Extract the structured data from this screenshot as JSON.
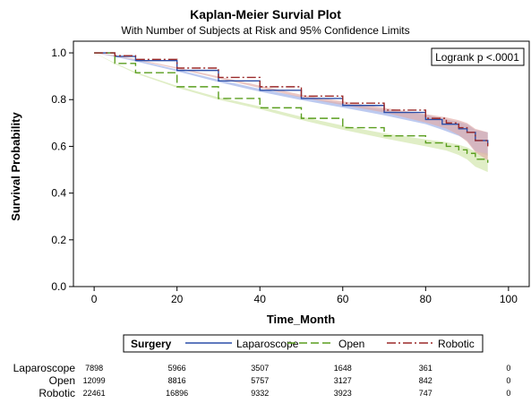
{
  "chart_data": {
    "type": "line",
    "title": "Kaplan-Meier Survial Plot",
    "subtitle": "With Number of Subjects at Risk and 95% Confidence Limits",
    "xlabel": "Time_Month",
    "ylabel": "Survival Probability",
    "xlim": [
      -5,
      105
    ],
    "ylim": [
      0,
      1.05
    ],
    "xticks": [
      0,
      20,
      40,
      60,
      80,
      100
    ],
    "yticks": [
      0.0,
      0.2,
      0.4,
      0.6,
      0.8,
      1.0
    ],
    "ytick_labels": [
      "0.0",
      "0.2",
      "0.4",
      "0.6",
      "0.8",
      "1.0"
    ],
    "annotation": "Logrank p <.0001",
    "grid": false,
    "legend": {
      "title": "Surgery",
      "placement": "bottom"
    },
    "series": [
      {
        "name": "Laparoscope",
        "color": "#2b4ea8",
        "band_color": "#9aaee8",
        "dash": "solid",
        "x": [
          0,
          5,
          10,
          20,
          30,
          40,
          50,
          60,
          70,
          80,
          84,
          88,
          90,
          92,
          95
        ],
        "y": [
          1.0,
          0.985,
          0.967,
          0.925,
          0.88,
          0.84,
          0.805,
          0.775,
          0.745,
          0.715,
          0.695,
          0.675,
          0.66,
          0.625,
          0.61
        ],
        "ci_width": [
          0.0,
          0.002,
          0.003,
          0.004,
          0.005,
          0.006,
          0.007,
          0.009,
          0.012,
          0.02,
          0.024,
          0.03,
          0.035,
          0.045,
          0.05
        ]
      },
      {
        "name": "Open",
        "color": "#5a9e1e",
        "band_color": "#cfe5a8",
        "dash": "long-dash",
        "x": [
          0,
          5,
          10,
          20,
          30,
          40,
          50,
          60,
          70,
          80,
          85,
          88,
          90,
          92,
          95
        ],
        "y": [
          1.0,
          0.955,
          0.915,
          0.855,
          0.805,
          0.765,
          0.72,
          0.68,
          0.645,
          0.615,
          0.6,
          0.585,
          0.57,
          0.545,
          0.53
        ],
        "ci_width": [
          0.0,
          0.002,
          0.003,
          0.004,
          0.005,
          0.006,
          0.007,
          0.009,
          0.011,
          0.015,
          0.018,
          0.022,
          0.026,
          0.032,
          0.04
        ]
      },
      {
        "name": "Robotic",
        "color": "#9b2a2a",
        "band_color": "#e2aaa6",
        "dash": "dash-dot",
        "x": [
          0,
          5,
          10,
          20,
          30,
          40,
          50,
          60,
          70,
          80,
          85,
          88,
          90,
          92,
          95
        ],
        "y": [
          1.0,
          0.988,
          0.972,
          0.935,
          0.895,
          0.855,
          0.815,
          0.785,
          0.755,
          0.72,
          0.7,
          0.68,
          0.66,
          0.625,
          0.6
        ],
        "ci_width": [
          0.0,
          0.002,
          0.002,
          0.003,
          0.004,
          0.005,
          0.006,
          0.008,
          0.01,
          0.018,
          0.024,
          0.032,
          0.04,
          0.05,
          0.06
        ]
      }
    ],
    "risk_table": {
      "times": [
        0,
        20,
        40,
        60,
        80,
        100
      ],
      "rows": [
        {
          "label": "Laparoscope",
          "values": [
            "7898",
            "5966",
            "3507",
            "1648",
            "361",
            "0"
          ]
        },
        {
          "label": "Open",
          "values": [
            "12099",
            "8816",
            "5757",
            "3127",
            "842",
            "0"
          ]
        },
        {
          "label": "Robotic",
          "values": [
            "22461",
            "16896",
            "9332",
            "3923",
            "747",
            "0"
          ]
        }
      ]
    }
  }
}
